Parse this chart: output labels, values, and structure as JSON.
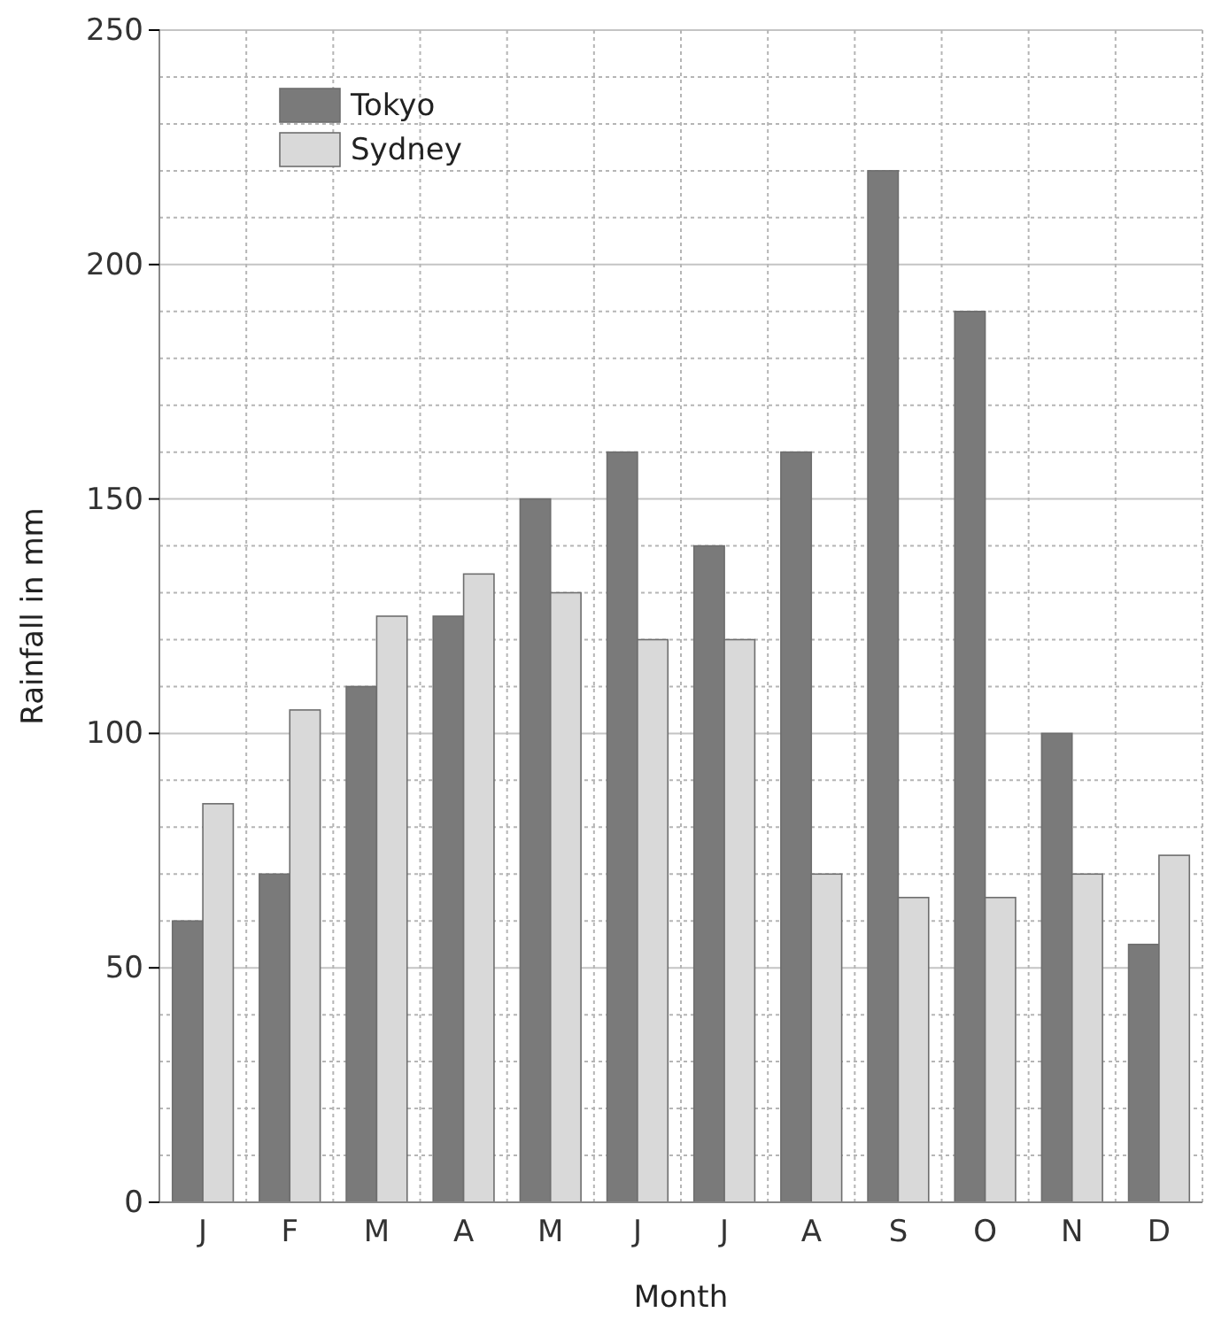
{
  "chart_data": {
    "type": "bar",
    "xlabel": "Month",
    "ylabel": "Rainfall in mm",
    "categories": [
      "J",
      "F",
      "M",
      "A",
      "M",
      "J",
      "J",
      "A",
      "S",
      "O",
      "N",
      "D"
    ],
    "series": [
      {
        "name": "Tokyo",
        "color": "#7a7a7a",
        "values": [
          60,
          70,
          110,
          125,
          150,
          160,
          140,
          160,
          220,
          190,
          100,
          55
        ]
      },
      {
        "name": "Sydney",
        "color": "#d9d9d9",
        "values": [
          85,
          105,
          125,
          134,
          130,
          120,
          120,
          70,
          65,
          65,
          70,
          74
        ]
      }
    ],
    "ylim": [
      0,
      250
    ],
    "yticks": [
      0,
      {
        "value": 10,
        "label": null
      },
      {
        "value": 20,
        "label": null
      },
      {
        "value": 30,
        "label": null
      },
      {
        "value": 40,
        "label": null
      },
      50,
      {
        "value": 60,
        "label": null
      },
      {
        "value": 70,
        "label": null
      },
      {
        "value": 80,
        "label": null
      },
      {
        "value": 90,
        "label": null
      },
      100,
      {
        "value": 110,
        "label": null
      },
      {
        "value": 120,
        "label": null
      },
      {
        "value": 130,
        "label": null
      },
      {
        "value": 140,
        "label": null
      },
      150,
      {
        "value": 160,
        "label": null
      },
      {
        "value": 170,
        "label": null
      },
      {
        "value": 180,
        "label": null
      },
      {
        "value": 190,
        "label": null
      },
      200,
      {
        "value": 210,
        "label": null
      },
      {
        "value": 220,
        "label": null
      },
      {
        "value": 230,
        "label": null
      },
      {
        "value": 240,
        "label": null
      },
      250
    ],
    "grid": true,
    "legend": "top left"
  }
}
